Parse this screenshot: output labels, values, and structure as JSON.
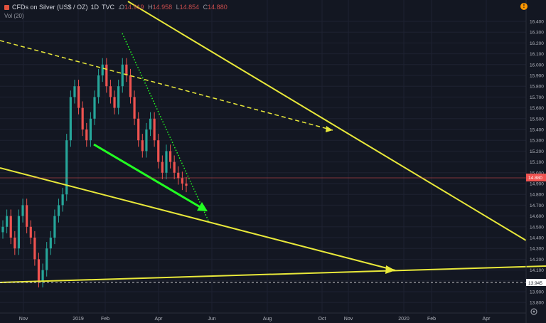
{
  "header": {
    "symbol": "CFDs on Silver (US$ / OZ)",
    "interval": "1D",
    "source": "TVC",
    "ohlc": [
      {
        "key": "O",
        "value": "14.919"
      },
      {
        "key": "H",
        "value": "14.958"
      },
      {
        "key": "L",
        "value": "14.854"
      },
      {
        "key": "C",
        "value": "14.880"
      }
    ],
    "volume_label": "Vol (20)",
    "alert_icon": "!"
  },
  "colors": {
    "background": "#131722",
    "up": "#26a69a",
    "down": "#ef5350",
    "trendline": "#e8e83a",
    "arrow": "#22ff22",
    "price_line": "#ef5350"
  },
  "price_axis": {
    "ticks": [
      "16.400",
      "16.300",
      "16.200",
      "16.100",
      "16.000",
      "15.900",
      "15.800",
      "15.700",
      "15.600",
      "15.500",
      "15.400",
      "15.300",
      "15.200",
      "15.100",
      "15.000",
      "14.900",
      "14.800",
      "14.700",
      "14.600",
      "14.500",
      "14.400",
      "14.300",
      "14.200",
      "14.100",
      "14.000",
      "13.900",
      "13.800"
    ],
    "current_price": "14.880",
    "low_marker": "13.945"
  },
  "time_axis": {
    "labels": [
      "Nov",
      "2019",
      "Feb",
      "Apr",
      "Jun",
      "Aug",
      "Oct",
      "Nov",
      "2020",
      "Feb",
      "Apr"
    ]
  },
  "chart_data": {
    "type": "candlestick",
    "ylim": [
      13.75,
      16.45
    ],
    "series": [
      {
        "name": "CFDs on Silver (US$ / OZ)",
        "close": [
          14.5,
          14.6,
          14.4,
          14.3,
          14.6,
          14.7,
          14.5,
          14.4,
          14.2,
          14.0,
          14.1,
          14.3,
          14.4,
          14.6,
          14.7,
          14.8,
          15.3,
          15.7,
          15.8,
          15.6,
          15.4,
          15.3,
          15.5,
          15.7,
          15.9,
          16.0,
          15.8,
          15.7,
          15.6,
          15.8,
          16.0,
          15.9,
          15.7,
          15.5,
          15.3,
          15.2,
          15.4,
          15.5,
          15.3,
          15.1,
          15.0,
          15.2,
          15.1,
          15.0,
          14.95,
          14.9,
          14.88
        ]
      }
    ],
    "current_price": 14.88,
    "horizontal_marker": 13.945
  }
}
